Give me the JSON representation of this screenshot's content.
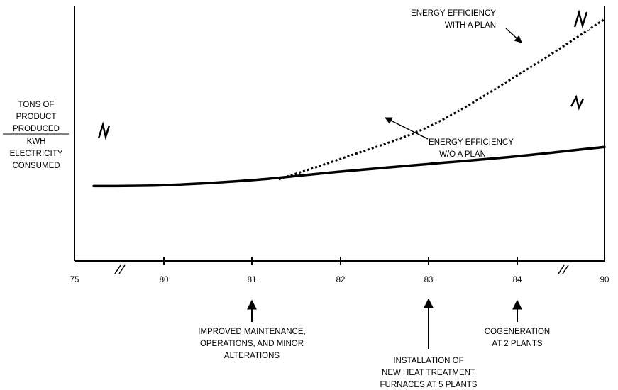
{
  "chart_data": {
    "type": "line",
    "title": "",
    "xlabel": "",
    "ylabel": {
      "numerator": [
        "TONS OF",
        "PRODUCT",
        "PRODUCED"
      ],
      "denominator": [
        "KWH",
        "ELECTRICITY",
        "CONSUMED"
      ]
    },
    "x_ticks": [
      "75",
      "80",
      "81",
      "82",
      "83",
      "84",
      "90"
    ],
    "x_axis_break_after": [
      "75",
      "84"
    ],
    "y_ticks": [],
    "grid": false,
    "series": [
      {
        "name": "ENERGY EFFICIENCY W/O A PLAN",
        "style": "solid",
        "label_lines": [
          "ENERGY EFFICIENCY",
          "W/O A PLAN"
        ],
        "x": [
          "75",
          "80",
          "81",
          "82",
          "83",
          "84",
          "90"
        ],
        "y": [
          0.44,
          0.445,
          0.475,
          0.525,
          0.57,
          0.615,
          0.67
        ]
      },
      {
        "name": "ENERGY EFFICIENCY WITH A PLAN",
        "style": "dotted",
        "label_lines": [
          "ENERGY EFFICIENCY",
          "WITH A PLAN"
        ],
        "x": [
          "81.3",
          "82",
          "83",
          "84",
          "90"
        ],
        "y": [
          0.48,
          0.6,
          0.79,
          1.09,
          1.42
        ]
      }
    ],
    "annotations": [
      {
        "x": "81",
        "lines": [
          "IMPROVED MAINTENANCE,",
          "OPERATIONS, AND MINOR",
          "ALTERATIONS"
        ]
      },
      {
        "x": "83",
        "lines": [
          "INSTALLATION OF",
          "NEW HEAT TREATMENT",
          "FURNACES AT 5 PLANTS"
        ]
      },
      {
        "x": "84",
        "lines": [
          "COGENERATION",
          "AT 2 PLANTS"
        ]
      }
    ]
  }
}
